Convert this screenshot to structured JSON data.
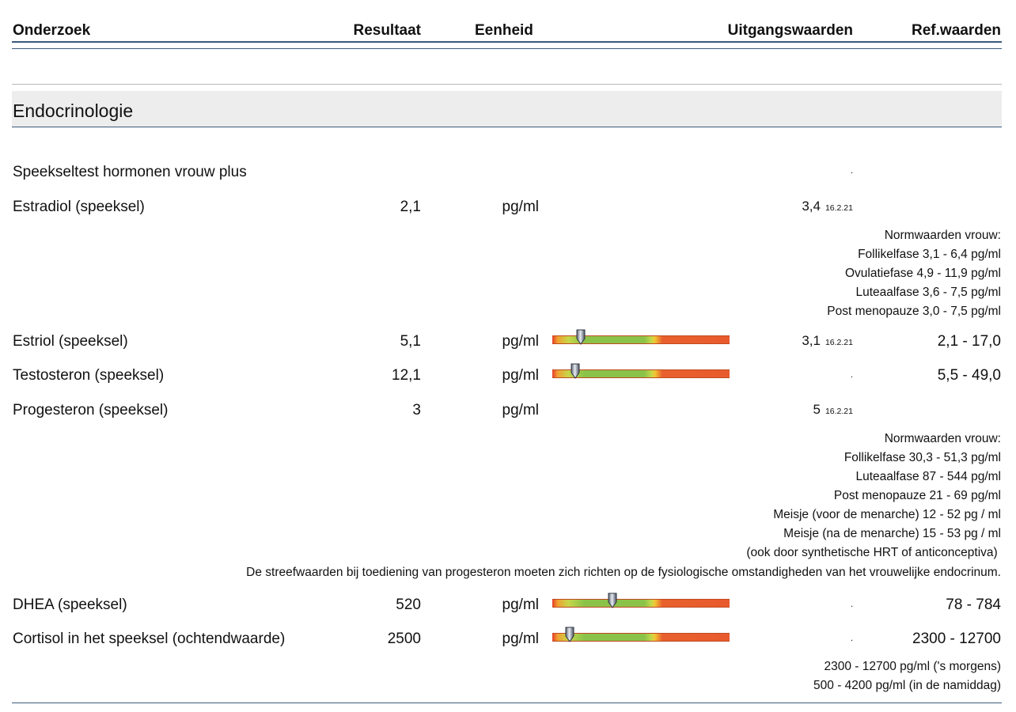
{
  "header": {
    "col_test": "Onderzoek",
    "col_result": "Resultaat",
    "col_unit": "Eenheid",
    "col_baseline": "Uitgangswaarden",
    "col_ref": "Ref.waarden"
  },
  "section": {
    "title": "Endocrinologie"
  },
  "panel": {
    "name": "Speekseltest hormonen vrouw plus",
    "baseline": "."
  },
  "rows": [
    {
      "name": "Estradiol (speeksel)",
      "result": "2,1",
      "unit": "pg/ml",
      "baseline": "3,4",
      "baseline_date": "16.2.21",
      "ref": ""
    },
    {
      "name": "Estriol (speeksel)",
      "result": "5,1",
      "unit": "pg/ml",
      "baseline": "3,1",
      "baseline_date": "16.2.21",
      "ref": "2,1 - 17,0",
      "gauge_position": 0.16
    },
    {
      "name": "Testosteron (speeksel)",
      "result": "12,1",
      "unit": "pg/ml",
      "baseline": ".",
      "baseline_date": "",
      "ref": "5,5 - 49,0",
      "gauge_position": 0.13
    },
    {
      "name": "Progesteron (speeksel)",
      "result": "3",
      "unit": "pg/ml",
      "baseline": "5",
      "baseline_date": "16.2.21",
      "ref": ""
    },
    {
      "name": "DHEA (speeksel)",
      "result": "520",
      "unit": "pg/ml",
      "baseline": ".",
      "baseline_date": "",
      "ref": "78 - 784",
      "gauge_position": 0.34
    },
    {
      "name": "Cortisol in het speeksel (ochtendwaarde)",
      "result": "2500",
      "unit": "pg/ml",
      "baseline": ".",
      "baseline_date": "",
      "ref": "2300 - 12700",
      "gauge_position": 0.1
    }
  ],
  "notes": {
    "estradiol": [
      "Normwaarden vrouw:",
      "Follikelfase 3,1 - 6,4 pg/ml",
      "Ovulatiefase 4,9 - 11,9 pg/ml",
      "Luteaalfase 3,6 - 7,5 pg/ml",
      "Post menopauze 3,0 - 7,5 pg/ml"
    ],
    "progesteron": [
      "Normwaarden vrouw:",
      "Follikelfase 30,3 - 51,3 pg/ml",
      "Luteaalfase 87 - 544 pg/ml",
      "Post menopauze 21 - 69 pg/ml",
      "Meisje (voor de menarche) 12 - 52 pg / ml",
      "Meisje (na de menarche) 15 - 53 pg / ml",
      "(ook door synthetische HRT of anticonceptiva) "
    ],
    "progesteron_long": "De streefwaarden bij toediening van progesteron moeten zich richten op de fysiologische omstandigheden van het vrouwelijke endocrinum.",
    "cortisol": [
      "2300 - 12700 pg/ml ('s morgens)",
      "500 - 4200 pg/ml (in de namiddag)"
    ]
  },
  "colors": {
    "rule": "#3a5a7a",
    "section_bg": "#ededed"
  }
}
